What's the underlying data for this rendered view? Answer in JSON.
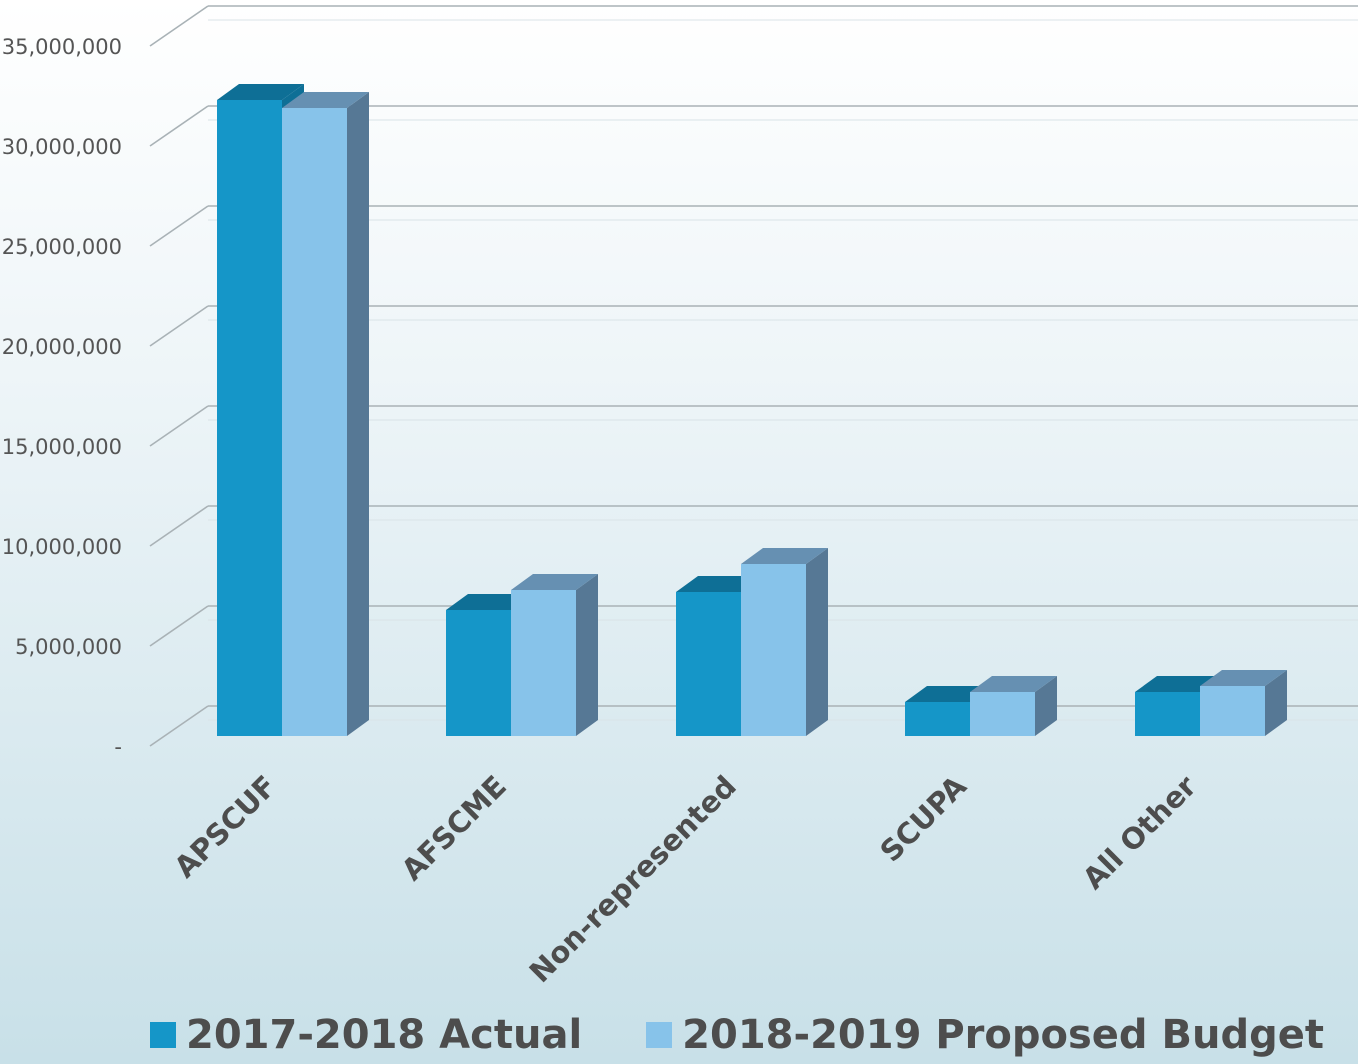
{
  "chart_data": {
    "type": "bar",
    "categories": [
      "APSCUF",
      "AFSCME",
      "Non-represented",
      "SCUPA",
      "All Other"
    ],
    "series": [
      {
        "name": "2017-2018 Actual",
        "values": [
          31800000,
          6300000,
          7200000,
          1700000,
          2200000
        ],
        "color": "#1596c8"
      },
      {
        "name": "2018-2019 Proposed Budget",
        "values": [
          31400000,
          7300000,
          8600000,
          2200000,
          2500000
        ],
        "color": "#87c3ea"
      }
    ],
    "y_ticks": [
      "-",
      "5,000,000",
      "10,000,000",
      "15,000,000",
      "20,000,000",
      "25,000,000",
      "30,000,000",
      "35,000,000"
    ],
    "ylim": [
      0,
      35000000
    ],
    "grid": true,
    "legend_position": "bottom"
  }
}
